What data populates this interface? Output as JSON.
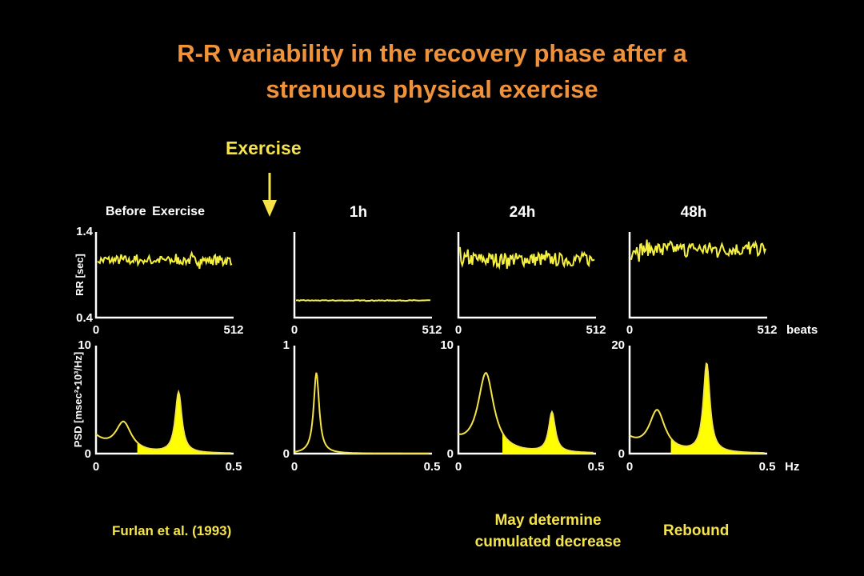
{
  "title_line1": "R-R variability in the recovery phase after a",
  "title_line2": "strenuous physical exercise",
  "exercise_label": "Exercise",
  "before_label": "Before  Exercise",
  "citation": "Furlan et al. (1993)",
  "note_line1": "May determine",
  "note_line2": "cumulated decrease",
  "rebound_label": "Rebound",
  "colors": {
    "title": "#f0923a",
    "accent": "#f5e34a",
    "trace": "#f5f040",
    "fill": "#ffff00",
    "background": "#000000"
  },
  "chart_data": [
    {
      "type": "line",
      "panel": "before-exercise-rr",
      "ylabel": "RR [sec]",
      "xlim": [
        0,
        512
      ],
      "ylim": [
        0.4,
        1.4
      ],
      "x_ticks": [
        "0",
        "512"
      ],
      "y_ticks": [
        "1.4",
        "0.4"
      ],
      "series": [
        {
          "mean": 1.07,
          "variability": 0.07
        }
      ]
    },
    {
      "type": "line",
      "panel": "1h-rr",
      "heading": "1h",
      "xlim": [
        0,
        512
      ],
      "ylim": [
        0.4,
        1.4
      ],
      "x_ticks": [
        "0",
        "512"
      ],
      "series": [
        {
          "mean": 0.6,
          "variability": 0.005
        }
      ]
    },
    {
      "type": "line",
      "panel": "24h-rr",
      "heading": "24h",
      "xlim": [
        0,
        512
      ],
      "ylim": [
        0.4,
        1.4
      ],
      "x_ticks": [
        "0",
        "512"
      ],
      "series": [
        {
          "mean": 1.08,
          "variability": 0.1
        }
      ]
    },
    {
      "type": "line",
      "panel": "48h-rr",
      "heading": "48h",
      "xlabel": "beats",
      "xlim": [
        0,
        512
      ],
      "ylim": [
        0.4,
        1.4
      ],
      "x_ticks": [
        "0",
        "512"
      ],
      "series": [
        {
          "mean": 1.2,
          "variability": 0.1
        }
      ]
    },
    {
      "type": "area",
      "panel": "before-exercise-psd",
      "ylabel": "PSD [msec²•10³/Hz]",
      "xlim": [
        0,
        0.5
      ],
      "ylim": [
        0,
        10
      ],
      "x_ticks": [
        "0",
        "0.5"
      ],
      "y_ticks": [
        "10",
        "0"
      ],
      "lf": {
        "center": 0.1,
        "peak": 2.7
      },
      "hf": {
        "center": 0.3,
        "peak": 5.6
      },
      "base": 1.5,
      "fill_from": 0.15
    },
    {
      "type": "line",
      "panel": "1h-psd",
      "xlim": [
        0,
        0.5
      ],
      "ylim": [
        0,
        1
      ],
      "x_ticks": [
        "0",
        "0.5"
      ],
      "y_ticks": [
        "1",
        "0"
      ],
      "lf": {
        "center": 0.08,
        "peak": 0.75
      },
      "base": 0.0
    },
    {
      "type": "area",
      "panel": "24h-psd",
      "xlim": [
        0,
        0.5
      ],
      "ylim": [
        0,
        10
      ],
      "x_ticks": [
        "0",
        "0.5"
      ],
      "y_ticks": [
        "10",
        "0"
      ],
      "lf": {
        "center": 0.1,
        "peak": 7.3
      },
      "hf": {
        "center": 0.34,
        "peak": 3.7
      },
      "base": 1.0,
      "fill_from": 0.16
    },
    {
      "type": "area",
      "panel": "48h-psd",
      "xlabel": "Hz",
      "xlim": [
        0,
        0.5
      ],
      "ylim": [
        0,
        20
      ],
      "x_ticks": [
        "0",
        "0.5"
      ],
      "y_ticks": [
        "20",
        "0"
      ],
      "lf": {
        "center": 0.1,
        "peak": 7.6
      },
      "hf": {
        "center": 0.28,
        "peak": 16.5
      },
      "base": 2.5,
      "fill_from": 0.15
    }
  ]
}
